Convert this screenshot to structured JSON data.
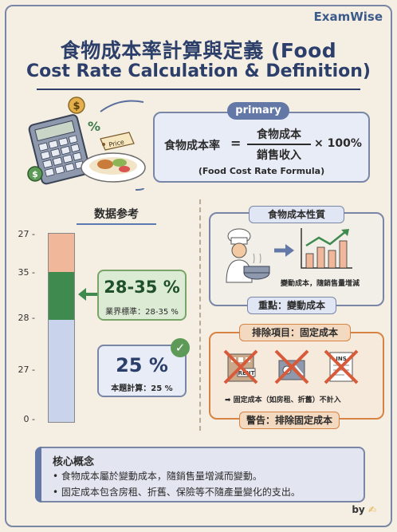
{
  "brand": "ExamWise",
  "title": {
    "line1": "食物成本率計算與定義 (Food",
    "line2": "Cost Rate Calculation & Definition)"
  },
  "illustration": {
    "price_tag": "Price"
  },
  "formula": {
    "tag": "primary",
    "lhs": "食物成本率",
    "equals": "=",
    "numerator": "食物成本",
    "denominator": "銷售收入",
    "multiplier": "× 100%",
    "caption": "(Food Cost Rate Formula)"
  },
  "reference": {
    "title": "数据参考",
    "axis_labels": [
      "27 -",
      "35 -",
      "28 -",
      "27 -",
      "0 -"
    ],
    "range_value": "28-35 %",
    "range_label": "業界標準：28-35 %",
    "calc_value": "25 %",
    "calc_label": "本題計算：25 %"
  },
  "properties": {
    "title": "食物成本性質",
    "caption": "變動成本，隨銷售量增減",
    "key_point": "重點：變動成本"
  },
  "exclusion": {
    "title": "排除項目：固定成本",
    "rent_sign": "RENT",
    "ins_sign": "INS",
    "note": "➡ 固定成本（如房租、折舊）不計入",
    "warning": "警告：排除固定成本"
  },
  "core": {
    "title": "核心概念",
    "items": [
      "• 食物成本屬於變動成本，隨銷售量增減而變動。",
      "• 固定成本包含房租、折舊、保險等不隨產量變化的支出。"
    ]
  },
  "byline": "by",
  "colors": {
    "navy": "#2c3f6b",
    "green_box": "#dcebd3",
    "blue_box": "#e8ecf6",
    "orange_border": "#d78344"
  }
}
